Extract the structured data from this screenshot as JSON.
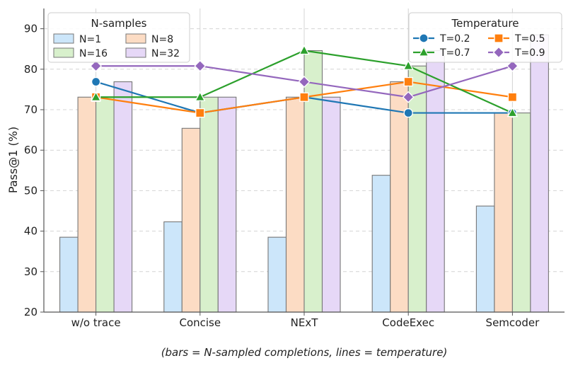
{
  "chart_data": {
    "type": "bar",
    "categories": [
      "w/o trace",
      "Concise",
      "NExT",
      "CodeExec",
      "Semcoder"
    ],
    "ylabel": "Pass@1 (%)",
    "ylim": [
      20,
      95
    ],
    "yticks": [
      20,
      30,
      40,
      50,
      60,
      70,
      80,
      90
    ],
    "grid": true,
    "caption": "(bars = N-sampled completions, lines = temperature)",
    "bar_legend": {
      "title": "N-samples",
      "placement": "top-left"
    },
    "line_legend": {
      "title": "Temperature",
      "placement": "top-right"
    },
    "bar_series": [
      {
        "name": "N=1",
        "color": "#cce6fa",
        "values": [
          38.5,
          42.3,
          38.5,
          53.8,
          46.2
        ]
      },
      {
        "name": "N=8",
        "color": "#fcdcc4",
        "values": [
          73.1,
          65.4,
          73.1,
          76.9,
          69.2
        ]
      },
      {
        "name": "N=16",
        "color": "#d8f0cc",
        "values": [
          73.1,
          73.1,
          84.6,
          80.8,
          69.2
        ]
      },
      {
        "name": "N=32",
        "color": "#e6d8f7",
        "values": [
          76.9,
          73.1,
          73.1,
          84.6,
          88.5
        ]
      }
    ],
    "line_series": [
      {
        "name": "T=0.2",
        "color": "#1f77b4",
        "marker": "circle",
        "values": [
          76.9,
          69.2,
          73.1,
          69.2,
          69.2
        ]
      },
      {
        "name": "T=0.5",
        "color": "#ff7f0e",
        "marker": "square",
        "values": [
          73.1,
          69.2,
          73.1,
          76.9,
          73.1
        ]
      },
      {
        "name": "T=0.7",
        "color": "#2ca02c",
        "marker": "triangle",
        "values": [
          73.1,
          73.1,
          84.6,
          80.8,
          69.2
        ]
      },
      {
        "name": "T=0.9",
        "color": "#9467bd",
        "marker": "diamond",
        "values": [
          80.8,
          80.8,
          76.9,
          73.1,
          80.8
        ]
      }
    ]
  }
}
